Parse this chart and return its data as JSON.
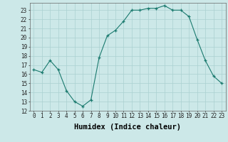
{
  "hours": [
    0,
    1,
    2,
    3,
    4,
    5,
    6,
    7,
    8,
    9,
    10,
    11,
    12,
    13,
    14,
    15,
    16,
    17,
    18,
    19,
    20,
    21,
    22,
    23
  ],
  "values": [
    16.5,
    16.2,
    17.5,
    16.5,
    14.2,
    13.0,
    12.5,
    13.2,
    17.8,
    20.2,
    20.8,
    21.8,
    23.0,
    23.0,
    23.2,
    23.2,
    23.5,
    23.0,
    23.0,
    22.3,
    19.8,
    17.5,
    15.8,
    15.0
  ],
  "line_color": "#1a7a6e",
  "marker": "+",
  "bg_color": "#cce8e8",
  "grid_color": "#aad0d0",
  "xlabel": "Humidex (Indice chaleur)",
  "ylim": [
    12,
    23.8
  ],
  "yticks": [
    12,
    13,
    14,
    15,
    16,
    17,
    18,
    19,
    20,
    21,
    22,
    23
  ],
  "xlim": [
    -0.5,
    23.5
  ],
  "xticks": [
    0,
    1,
    2,
    3,
    4,
    5,
    6,
    7,
    8,
    9,
    10,
    11,
    12,
    13,
    14,
    15,
    16,
    17,
    18,
    19,
    20,
    21,
    22,
    23
  ],
  "tick_fontsize": 5.5,
  "xlabel_fontsize": 7.5
}
